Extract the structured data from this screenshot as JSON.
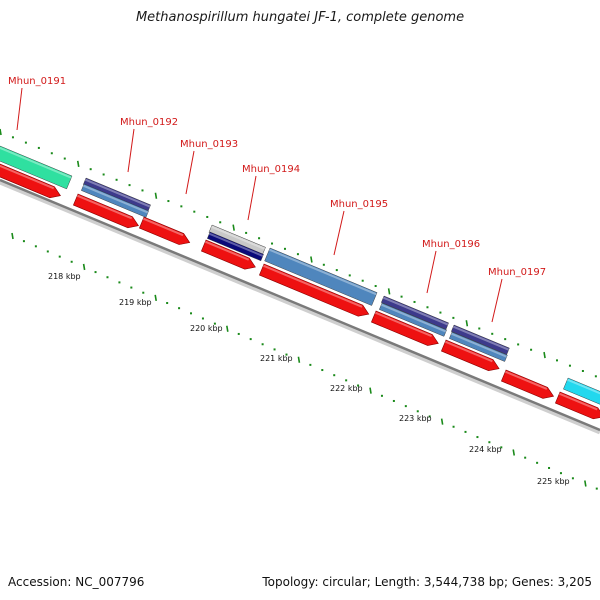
{
  "title": "Methanospirillum hungatei JF-1, complete genome",
  "footer": {
    "accession": "Accession: NC_007796",
    "summary": "Topology: circular; Length: 3,544,738 bp; Genes: 3,205"
  },
  "gene_labels": [
    "Mhun_0191",
    "Mhun_0192",
    "Mhun_0193",
    "Mhun_0194",
    "Mhun_0195",
    "Mhun_0196",
    "Mhun_0197"
  ],
  "kbp_labels": [
    "218 kbp",
    "219 kbp",
    "220 kbp",
    "221 kbp",
    "222 kbp",
    "223 kbp",
    "224 kbp",
    "225 kbp"
  ],
  "colors": {
    "cds_red": "#ee1111",
    "backbone": "#7a7a7a",
    "steel_blue": "#4f86bd",
    "dark_slate": "#3d3a8c",
    "navy": "#0a0a7a",
    "silver": "#c8c8c8",
    "aqua_green": "#2fe0a0",
    "cyan": "#22d8ee",
    "tick_green": "#1a8a1a",
    "label_red": "#d21a1a"
  }
}
